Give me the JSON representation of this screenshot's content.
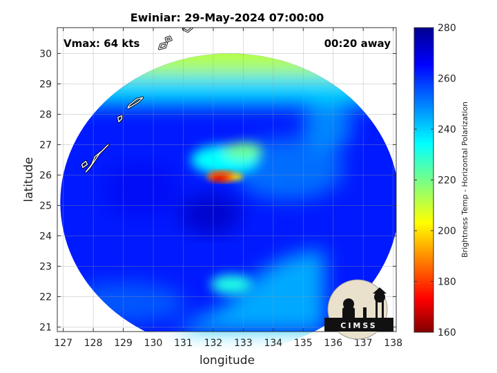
{
  "chart_data": {
    "type": "heatmap",
    "title": "Ewiniar: 29-May-2024 07:00:00",
    "xlabel": "longitude",
    "ylabel": "latitude",
    "xlim": [
      126.8,
      138.1
    ],
    "ylim": [
      20.85,
      30.85
    ],
    "xticks": [
      127,
      128,
      129,
      130,
      131,
      132,
      133,
      134,
      135,
      136,
      137,
      138
    ],
    "yticks": [
      21,
      22,
      23,
      24,
      25,
      26,
      27,
      28,
      29,
      30
    ],
    "grid": true,
    "colorbar": {
      "label": "Brightness Temp - Horizontal Polarization",
      "min": 160,
      "max": 280,
      "ticks": [
        160,
        180,
        200,
        220,
        240,
        260,
        280
      ],
      "colormap": "jet"
    },
    "annotations": {
      "vmax": "Vmax: 64 kts",
      "time_offset": "00:20 away"
    },
    "swath": {
      "center": [
        132.55,
        25.1
      ],
      "radius_lon": 5.65,
      "radius_lat": 4.9
    },
    "features": [
      {
        "name": "warm-core",
        "lon": 132.3,
        "lat": 25.95,
        "value": 172
      },
      {
        "name": "convection-north",
        "lon": 132.4,
        "lat": 26.6,
        "value": 232
      },
      {
        "name": "dry-north-band",
        "lat_min": 29.3,
        "value": 212
      },
      {
        "name": "dry-northeast-edge",
        "lon": 130.9,
        "lat": 30.5,
        "value": 205
      },
      {
        "name": "southern-rainband",
        "lon": 133.0,
        "lat": 22.3,
        "value": 240
      }
    ],
    "coastlines": [
      [
        [
          131.0,
          30.8
        ],
        [
          131.15,
          30.72
        ],
        [
          131.3,
          30.85
        ],
        [
          131.05,
          30.95
        ]
      ],
      [
        [
          130.2,
          30.15
        ],
        [
          130.4,
          30.2
        ],
        [
          130.45,
          30.35
        ],
        [
          130.25,
          30.3
        ]
      ],
      [
        [
          130.45,
          30.4
        ],
        [
          130.6,
          30.45
        ],
        [
          130.55,
          30.55
        ],
        [
          130.42,
          30.5
        ]
      ],
      [
        [
          129.15,
          28.2
        ],
        [
          129.5,
          28.4
        ],
        [
          129.65,
          28.55
        ],
        [
          129.45,
          28.5
        ],
        [
          129.2,
          28.3
        ]
      ],
      [
        [
          128.85,
          27.75
        ],
        [
          128.95,
          27.85
        ],
        [
          128.95,
          27.95
        ],
        [
          128.82,
          27.9
        ]
      ],
      [
        [
          127.75,
          26.1
        ],
        [
          127.95,
          26.35
        ],
        [
          128.05,
          26.6
        ],
        [
          128.3,
          26.8
        ],
        [
          128.5,
          27.0
        ],
        [
          128.4,
          26.9
        ],
        [
          128.2,
          26.7
        ],
        [
          128.0,
          26.4
        ],
        [
          127.85,
          26.2
        ]
      ],
      [
        [
          127.65,
          26.25
        ],
        [
          127.8,
          26.35
        ],
        [
          127.75,
          26.45
        ],
        [
          127.62,
          26.35
        ]
      ]
    ]
  },
  "logo": {
    "text": "CIMSS"
  }
}
